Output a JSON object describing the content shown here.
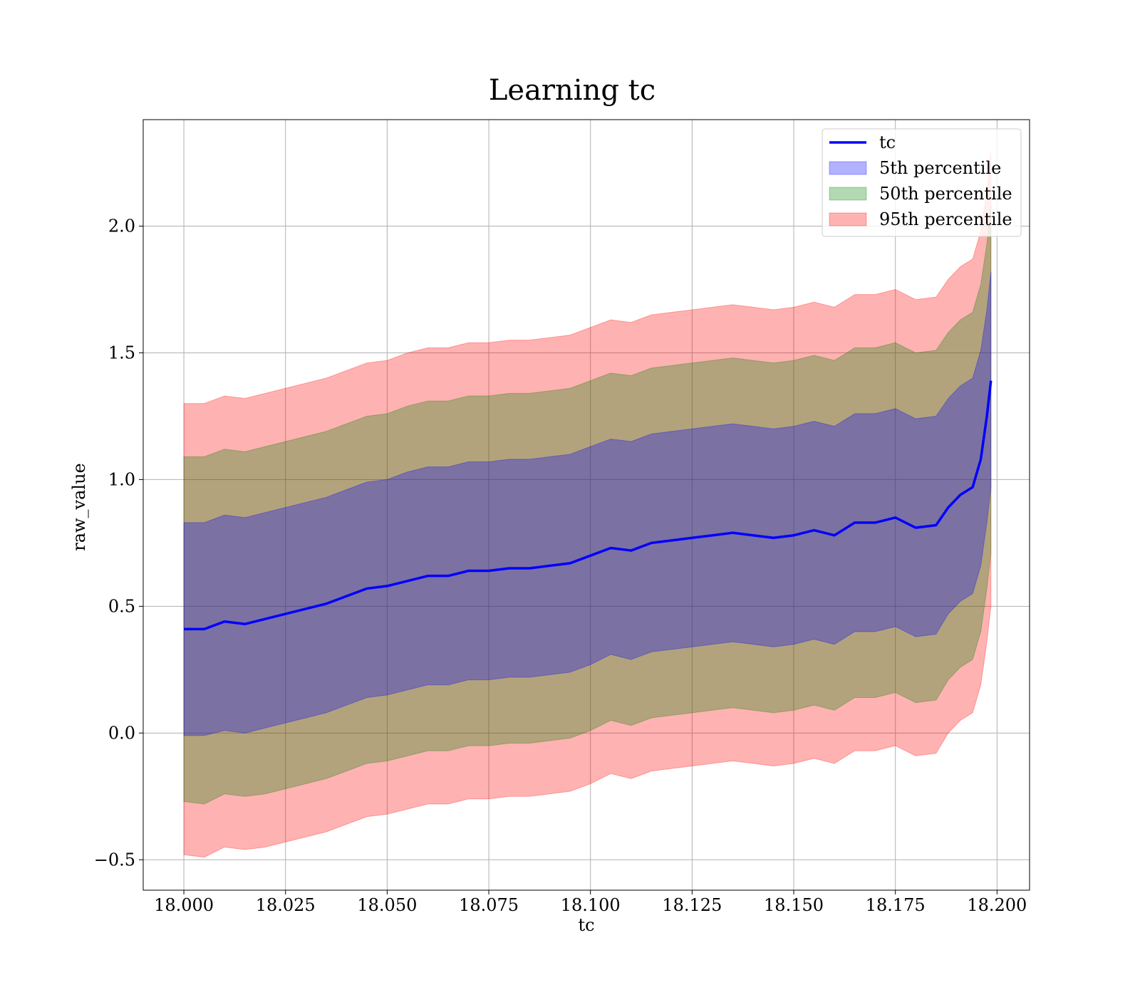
{
  "colors": {
    "line": "#0000ff",
    "band_5th": "#0000ff",
    "band_50th": "#008000",
    "band_95th": "#ff0000"
  },
  "chart_data": {
    "type": "area",
    "title": "Learning tc",
    "xlabel": "tc",
    "ylabel": "raw_value",
    "xlim": [
      17.99,
      18.208
    ],
    "ylim": [
      -0.62,
      2.42
    ],
    "x_ticks": [
      "18.000",
      "18.025",
      "18.050",
      "18.075",
      "18.100",
      "18.125",
      "18.150",
      "18.175",
      "18.200"
    ],
    "y_ticks": [
      "−0.5",
      "0.0",
      "0.5",
      "1.0",
      "1.5",
      "2.0"
    ],
    "grid": true,
    "legend": {
      "position": "top-right",
      "entries": [
        "tc",
        "5th percentile",
        "50th percentile",
        "95th percentile"
      ]
    },
    "x": [
      18.0,
      18.005,
      18.01,
      18.015,
      18.02,
      18.025,
      18.03,
      18.035,
      18.04,
      18.045,
      18.05,
      18.055,
      18.06,
      18.065,
      18.07,
      18.075,
      18.08,
      18.085,
      18.09,
      18.095,
      18.1,
      18.105,
      18.11,
      18.115,
      18.12,
      18.125,
      18.13,
      18.135,
      18.14,
      18.145,
      18.15,
      18.155,
      18.16,
      18.165,
      18.17,
      18.175,
      18.18,
      18.185,
      18.188,
      18.191,
      18.194,
      18.196,
      18.1975,
      18.1985
    ],
    "series": [
      {
        "name": "tc",
        "kind": "line",
        "values": [
          0.41,
          0.41,
          0.44,
          0.43,
          0.45,
          0.47,
          0.49,
          0.51,
          0.54,
          0.57,
          0.58,
          0.6,
          0.62,
          0.62,
          0.64,
          0.64,
          0.65,
          0.65,
          0.66,
          0.67,
          0.7,
          0.73,
          0.72,
          0.75,
          0.76,
          0.77,
          0.78,
          0.79,
          0.78,
          0.77,
          0.78,
          0.8,
          0.78,
          0.83,
          0.83,
          0.85,
          0.81,
          0.82,
          0.89,
          0.94,
          0.97,
          1.08,
          1.25,
          1.39
        ]
      },
      {
        "name": "5th percentile",
        "kind": "band",
        "lower": [
          -0.01,
          -0.01,
          0.01,
          0.0,
          0.02,
          0.04,
          0.06,
          0.08,
          0.11,
          0.14,
          0.15,
          0.17,
          0.19,
          0.19,
          0.21,
          0.21,
          0.22,
          0.22,
          0.23,
          0.24,
          0.27,
          0.31,
          0.29,
          0.32,
          0.33,
          0.34,
          0.35,
          0.36,
          0.35,
          0.34,
          0.35,
          0.37,
          0.35,
          0.4,
          0.4,
          0.42,
          0.38,
          0.39,
          0.47,
          0.52,
          0.55,
          0.66,
          0.83,
          0.97
        ],
        "upper": [
          0.83,
          0.83,
          0.86,
          0.85,
          0.87,
          0.89,
          0.91,
          0.93,
          0.96,
          0.99,
          1.0,
          1.03,
          1.05,
          1.05,
          1.07,
          1.07,
          1.08,
          1.08,
          1.09,
          1.1,
          1.13,
          1.16,
          1.15,
          1.18,
          1.19,
          1.2,
          1.21,
          1.22,
          1.21,
          1.2,
          1.21,
          1.23,
          1.21,
          1.26,
          1.26,
          1.28,
          1.24,
          1.25,
          1.32,
          1.37,
          1.4,
          1.51,
          1.67,
          1.82
        ]
      },
      {
        "name": "50th percentile",
        "kind": "band",
        "lower": [
          -0.27,
          -0.28,
          -0.24,
          -0.25,
          -0.24,
          -0.22,
          -0.2,
          -0.18,
          -0.15,
          -0.12,
          -0.11,
          -0.09,
          -0.07,
          -0.07,
          -0.05,
          -0.05,
          -0.04,
          -0.04,
          -0.03,
          -0.02,
          0.01,
          0.05,
          0.03,
          0.06,
          0.07,
          0.08,
          0.09,
          0.1,
          0.09,
          0.08,
          0.09,
          0.11,
          0.09,
          0.14,
          0.14,
          0.16,
          0.12,
          0.13,
          0.21,
          0.26,
          0.29,
          0.4,
          0.57,
          0.71
        ],
        "upper": [
          1.09,
          1.09,
          1.12,
          1.11,
          1.13,
          1.15,
          1.17,
          1.19,
          1.22,
          1.25,
          1.26,
          1.29,
          1.31,
          1.31,
          1.33,
          1.33,
          1.34,
          1.34,
          1.35,
          1.36,
          1.39,
          1.42,
          1.41,
          1.44,
          1.45,
          1.46,
          1.47,
          1.48,
          1.47,
          1.46,
          1.47,
          1.49,
          1.47,
          1.52,
          1.52,
          1.54,
          1.5,
          1.51,
          1.58,
          1.63,
          1.66,
          1.77,
          1.93,
          2.08
        ]
      },
      {
        "name": "95th percentile",
        "kind": "band",
        "lower": [
          -0.48,
          -0.49,
          -0.45,
          -0.46,
          -0.45,
          -0.43,
          -0.41,
          -0.39,
          -0.36,
          -0.33,
          -0.32,
          -0.3,
          -0.28,
          -0.28,
          -0.26,
          -0.26,
          -0.25,
          -0.25,
          -0.24,
          -0.23,
          -0.2,
          -0.16,
          -0.18,
          -0.15,
          -0.14,
          -0.13,
          -0.12,
          -0.11,
          -0.12,
          -0.13,
          -0.12,
          -0.1,
          -0.12,
          -0.07,
          -0.07,
          -0.05,
          -0.09,
          -0.08,
          0.0,
          0.05,
          0.08,
          0.19,
          0.36,
          0.5
        ],
        "upper": [
          1.3,
          1.3,
          1.33,
          1.32,
          1.34,
          1.36,
          1.38,
          1.4,
          1.43,
          1.46,
          1.47,
          1.5,
          1.52,
          1.52,
          1.54,
          1.54,
          1.55,
          1.55,
          1.56,
          1.57,
          1.6,
          1.63,
          1.62,
          1.65,
          1.66,
          1.67,
          1.68,
          1.69,
          1.68,
          1.67,
          1.68,
          1.7,
          1.68,
          1.73,
          1.73,
          1.75,
          1.71,
          1.72,
          1.79,
          1.84,
          1.87,
          1.98,
          2.14,
          2.29
        ]
      }
    ]
  }
}
